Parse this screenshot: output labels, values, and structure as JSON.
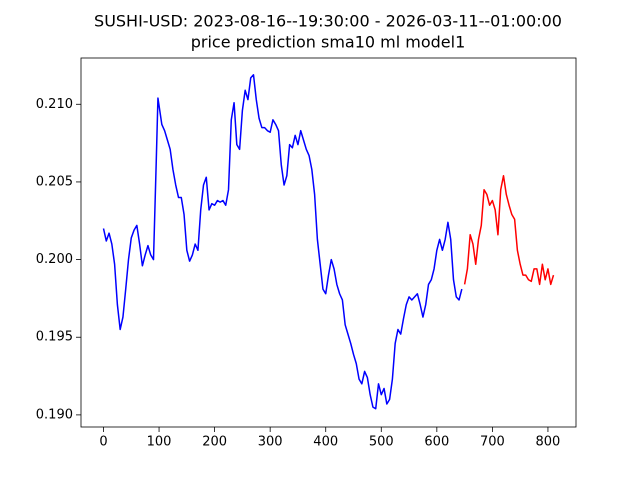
{
  "chart_data": {
    "type": "line",
    "title": "SUSHI-USD: 2023-08-16--19:30:00 - 2026-03-11--01:00:00",
    "subtitle": "price prediction sma10 ml model1",
    "xlim": [
      -40.5,
      850.5
    ],
    "xticks": [
      0,
      100,
      200,
      300,
      400,
      500,
      600,
      700,
      800
    ],
    "ylim": [
      0.18922,
      0.21298
    ],
    "yticks": [
      {
        "value": 0.19,
        "label": "0.190"
      },
      0.195,
      {
        "value": 0.2,
        "label": "0.200"
      },
      0.205,
      {
        "value": 0.21,
        "label": "0.210"
      }
    ],
    "grid": false,
    "series": [
      {
        "color": "#0000ff",
        "x": [
          0,
          5,
          10,
          15,
          20,
          25,
          30,
          35,
          40,
          45,
          50,
          55,
          60,
          65,
          70,
          75,
          80,
          85,
          90,
          95,
          98,
          105,
          110,
          115,
          120,
          125,
          130,
          135,
          140,
          145,
          150,
          155,
          160,
          165,
          170,
          175,
          180,
          185,
          190,
          195,
          200,
          205,
          210,
          215,
          220,
          225,
          230,
          235,
          240,
          245,
          250,
          255,
          260,
          265,
          270,
          275,
          280,
          285,
          290,
          295,
          300,
          305,
          310,
          315,
          320,
          325,
          330,
          335,
          340,
          345,
          350,
          355,
          360,
          365,
          370,
          375,
          380,
          385,
          390,
          395,
          400,
          405,
          410,
          415,
          420,
          425,
          430,
          435,
          440,
          445,
          450,
          455,
          460,
          465,
          470,
          475,
          480,
          485,
          490,
          495,
          500,
          505,
          510,
          515,
          520,
          525,
          530,
          535,
          540,
          545,
          550,
          555,
          560,
          565,
          570,
          575,
          580,
          585,
          590,
          595,
          600,
          605,
          610,
          615,
          620,
          625,
          630,
          635,
          640,
          645
        ],
        "values": [
          0.202,
          0.2012,
          0.2017,
          0.201,
          0.1997,
          0.1971,
          0.1955,
          0.1963,
          0.1981,
          0.2,
          0.2014,
          0.2019,
          0.2022,
          0.201,
          0.1996,
          0.2003,
          0.2009,
          0.2003,
          0.2,
          0.2064,
          0.2104,
          0.2087,
          0.2083,
          0.2077,
          0.2071,
          0.2058,
          0.2048,
          0.204,
          0.204,
          0.2029,
          0.2006,
          0.1999,
          0.2003,
          0.201,
          0.2006,
          0.2032,
          0.2048,
          0.2053,
          0.2032,
          0.2036,
          0.2035,
          0.2038,
          0.2037,
          0.2038,
          0.2035,
          0.2045,
          0.209,
          0.2101,
          0.2074,
          0.2071,
          0.2096,
          0.2109,
          0.2103,
          0.2117,
          0.2119,
          0.2103,
          0.2091,
          0.2085,
          0.2085,
          0.2083,
          0.2082,
          0.209,
          0.2087,
          0.2083,
          0.2061,
          0.2048,
          0.2054,
          0.2074,
          0.2072,
          0.208,
          0.2074,
          0.2083,
          0.2077,
          0.2071,
          0.2067,
          0.2058,
          0.2042,
          0.2013,
          0.1997,
          0.1981,
          0.1978,
          0.199,
          0.2,
          0.1994,
          0.1984,
          0.1978,
          0.1974,
          0.1958,
          0.1952,
          0.1946,
          0.1939,
          0.1933,
          0.1923,
          0.192,
          0.1928,
          0.1924,
          0.1913,
          0.1905,
          0.1904,
          0.192,
          0.1913,
          0.1917,
          0.1907,
          0.191,
          0.1923,
          0.1946,
          0.1955,
          0.1952,
          0.1962,
          0.1971,
          0.1976,
          0.1974,
          0.1976,
          0.1978,
          0.1971,
          0.1963,
          0.1971,
          0.1984,
          0.1987,
          0.1994,
          0.2006,
          0.2013,
          0.2006,
          0.2013,
          0.2024,
          0.2013,
          0.1987,
          0.1976,
          0.1974,
          0.1981
        ]
      },
      {
        "color": "#ff0000",
        "x": [
          650,
          655,
          660,
          665,
          670,
          675,
          680,
          685,
          690,
          695,
          700,
          705,
          710,
          715,
          720,
          725,
          730,
          735,
          740,
          745,
          750,
          755,
          760,
          765,
          770,
          775,
          780,
          785,
          790,
          795,
          800,
          805,
          810
        ],
        "values": [
          0.1984,
          0.1994,
          0.2016,
          0.201,
          0.1997,
          0.2013,
          0.2022,
          0.2045,
          0.2042,
          0.2035,
          0.2038,
          0.2032,
          0.2016,
          0.2045,
          0.2054,
          0.2042,
          0.2035,
          0.2029,
          0.2026,
          0.2006,
          0.1997,
          0.199,
          0.199,
          0.1987,
          0.1986,
          0.1994,
          0.1994,
          0.1984,
          0.1997,
          0.1987,
          0.1994,
          0.1984,
          0.199
        ]
      }
    ]
  }
}
